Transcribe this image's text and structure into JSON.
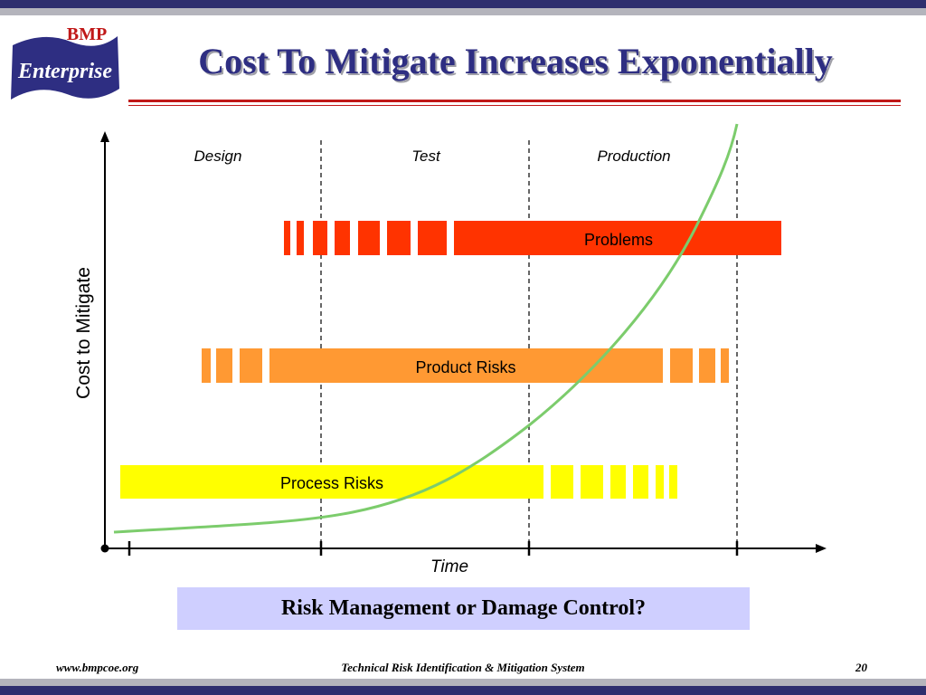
{
  "logo": {
    "top_text": "BMP",
    "main_text": "Enterprise",
    "color": "#2e2e82",
    "accent": "#c01818"
  },
  "slide": {
    "title": "Cost To Mitigate Increases Exponentially",
    "callout": "Risk Management or Damage Control?"
  },
  "diagram": {
    "phases": [
      "Design",
      "Test",
      "Production"
    ],
    "x_axis_label": "Time",
    "y_axis_label": "Cost to Mitigate",
    "bars": [
      {
        "label": "Problems",
        "color": "#ff3300"
      },
      {
        "label": "Product Risks",
        "color": "#ff9933"
      },
      {
        "label": "Process Risks",
        "color": "#ffff00"
      }
    ],
    "curve_color": "#7ccc6c"
  },
  "footer": {
    "left": "www.bmpcoe.org",
    "center": "Technical Risk Identification & Mitigation System",
    "page": "20"
  }
}
